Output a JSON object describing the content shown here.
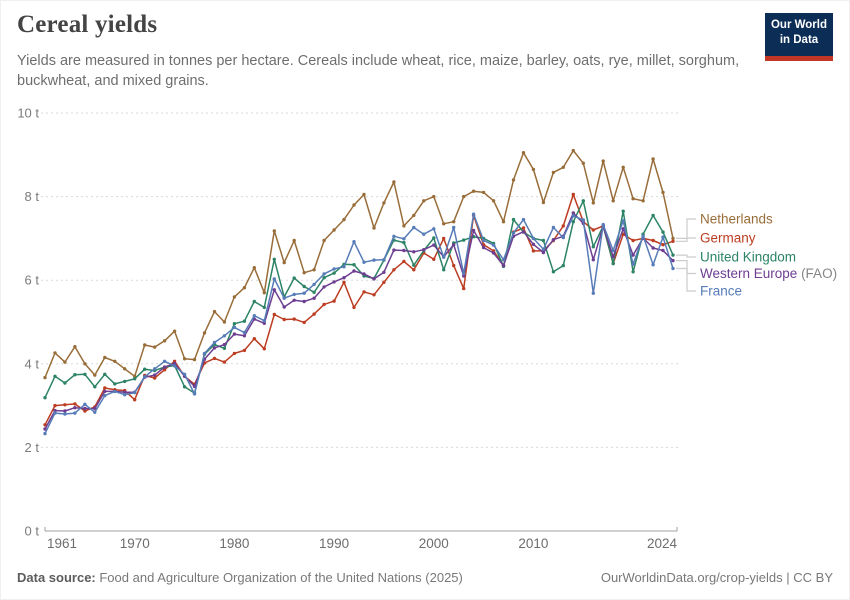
{
  "header": {
    "title": "Cereal yields",
    "subtitle": "Yields are measured in tonnes per hectare. Cereals include wheat, rice, maize, barley, oats, rye, millet, sorghum, buckwheat, and mixed grains.",
    "logo": {
      "line1": "Our World",
      "line2": "in Data"
    }
  },
  "footer": {
    "source_label": "Data source:",
    "source_text": " Food and Agriculture Organization of the United Nations (2025)",
    "credit": "OurWorldinData.org/crop-yields | CC BY"
  },
  "colors": {
    "logo_bg": "#0b2d56",
    "logo_stripe": "#c23625",
    "gridline": "#dadada",
    "axis": "#a1a1a1",
    "connector": "#cccccc",
    "suffix_gray": "#858585"
  },
  "chart_data": {
    "type": "line",
    "title": "Cereal yields",
    "ylabel": "tonnes per hectare",
    "unit": "t",
    "ylim": [
      0,
      10
    ],
    "xlim": [
      1961,
      2024
    ],
    "grid": "horizontal-dashed",
    "legend_position": "right",
    "yticks": [
      0,
      2,
      4,
      6,
      8,
      10
    ],
    "ytick_labels": [
      "0 t",
      "2 t",
      "4 t",
      "6 t",
      "8 t",
      "10 t"
    ],
    "xticks": [
      1961,
      1970,
      1980,
      1990,
      2000,
      2010,
      2024
    ],
    "x": [
      1961,
      1962,
      1963,
      1964,
      1965,
      1966,
      1967,
      1968,
      1969,
      1970,
      1971,
      1972,
      1973,
      1974,
      1975,
      1976,
      1977,
      1978,
      1979,
      1980,
      1981,
      1982,
      1983,
      1984,
      1985,
      1986,
      1987,
      1988,
      1989,
      1990,
      1991,
      1992,
      1993,
      1994,
      1995,
      1996,
      1997,
      1998,
      1999,
      2000,
      2001,
      2002,
      2003,
      2004,
      2005,
      2006,
      2007,
      2008,
      2009,
      2010,
      2011,
      2012,
      2013,
      2014,
      2015,
      2016,
      2017,
      2018,
      2019,
      2020,
      2021,
      2022,
      2023,
      2024
    ],
    "series": [
      {
        "name": "Netherlands",
        "color": "#996D39",
        "values": [
          3.67,
          4.26,
          4.04,
          4.41,
          4.0,
          3.73,
          4.15,
          4.06,
          3.88,
          3.7,
          4.45,
          4.4,
          4.55,
          4.78,
          4.12,
          4.1,
          4.74,
          5.25,
          5.0,
          5.6,
          5.82,
          6.3,
          5.7,
          7.18,
          6.42,
          6.95,
          6.18,
          6.25,
          6.95,
          7.2,
          7.45,
          7.8,
          8.05,
          7.25,
          7.85,
          8.35,
          7.3,
          7.55,
          7.9,
          8.0,
          7.35,
          7.4,
          8.0,
          8.13,
          8.1,
          7.9,
          7.4,
          8.4,
          9.05,
          8.65,
          7.86,
          8.58,
          8.7,
          9.1,
          8.8,
          7.85,
          8.85,
          7.9,
          8.7,
          7.95,
          7.9,
          8.9,
          8.1,
          7.0
        ]
      },
      {
        "name": "Germany",
        "color": "#BC3D22",
        "values": [
          2.54,
          3.0,
          3.02,
          3.04,
          2.87,
          2.97,
          3.42,
          3.38,
          3.36,
          3.14,
          3.72,
          3.66,
          3.86,
          4.06,
          3.7,
          3.51,
          4.02,
          4.13,
          4.04,
          4.25,
          4.32,
          4.6,
          4.36,
          5.18,
          5.06,
          5.07,
          4.99,
          5.19,
          5.42,
          5.5,
          5.95,
          5.35,
          5.72,
          5.65,
          5.95,
          6.25,
          6.45,
          6.25,
          6.65,
          6.5,
          7.0,
          6.35,
          5.8,
          7.55,
          6.85,
          6.7,
          6.35,
          7.15,
          7.25,
          6.7,
          6.7,
          6.95,
          7.3,
          8.05,
          7.4,
          7.2,
          7.3,
          6.4,
          7.1,
          6.95,
          7.0,
          6.95,
          6.85,
          6.93
        ]
      },
      {
        "name": "United Kingdom",
        "color": "#2C8465",
        "values": [
          3.19,
          3.7,
          3.54,
          3.74,
          3.75,
          3.45,
          3.75,
          3.52,
          3.58,
          3.64,
          3.87,
          3.84,
          3.92,
          3.96,
          3.45,
          3.3,
          4.23,
          4.46,
          4.37,
          4.96,
          5.02,
          5.49,
          5.35,
          6.5,
          5.6,
          6.05,
          5.85,
          5.71,
          6.06,
          6.17,
          6.38,
          6.37,
          6.1,
          6.04,
          6.48,
          6.96,
          6.9,
          6.36,
          6.71,
          7.01,
          6.25,
          6.89,
          6.96,
          7.04,
          7.0,
          6.88,
          6.33,
          7.45,
          7.15,
          7.0,
          6.95,
          6.2,
          6.35,
          7.4,
          7.9,
          6.8,
          7.3,
          6.4,
          7.65,
          6.2,
          7.1,
          7.55,
          7.15,
          6.6
        ]
      },
      {
        "name": "Western Europe",
        "suffix": " (FAO)",
        "color": "#6D3E91",
        "values": [
          2.44,
          2.88,
          2.87,
          2.95,
          2.93,
          2.93,
          3.34,
          3.34,
          3.32,
          3.32,
          3.68,
          3.73,
          3.92,
          4.01,
          3.7,
          3.46,
          4.11,
          4.38,
          4.46,
          4.71,
          4.67,
          5.07,
          4.97,
          5.77,
          5.36,
          5.52,
          5.49,
          5.57,
          5.84,
          5.96,
          6.06,
          6.22,
          6.15,
          6.03,
          6.19,
          6.72,
          6.71,
          6.68,
          6.73,
          6.84,
          6.56,
          6.85,
          6.1,
          7.19,
          6.78,
          6.65,
          6.35,
          7.05,
          7.16,
          6.86,
          6.66,
          6.97,
          7.05,
          7.61,
          7.36,
          6.49,
          7.29,
          6.56,
          7.23,
          6.6,
          7.01,
          6.77,
          6.71,
          6.47
        ]
      },
      {
        "name": "France",
        "color": "#577CB8",
        "values": [
          2.33,
          2.82,
          2.8,
          2.82,
          3.03,
          2.84,
          3.24,
          3.34,
          3.26,
          3.31,
          3.69,
          3.88,
          4.06,
          3.95,
          3.75,
          3.28,
          4.25,
          4.51,
          4.67,
          4.87,
          4.75,
          5.15,
          5.03,
          6.03,
          5.57,
          5.66,
          5.69,
          5.9,
          6.15,
          6.27,
          6.32,
          6.92,
          6.43,
          6.48,
          6.49,
          7.05,
          6.99,
          7.26,
          7.1,
          7.23,
          6.55,
          7.26,
          6.16,
          7.58,
          6.95,
          6.84,
          6.49,
          7.13,
          7.45,
          7.0,
          6.74,
          7.26,
          7.02,
          7.54,
          7.44,
          5.69,
          7.33,
          6.71,
          7.42,
          6.38,
          7.06,
          6.37,
          7.03,
          6.28
        ]
      }
    ]
  }
}
